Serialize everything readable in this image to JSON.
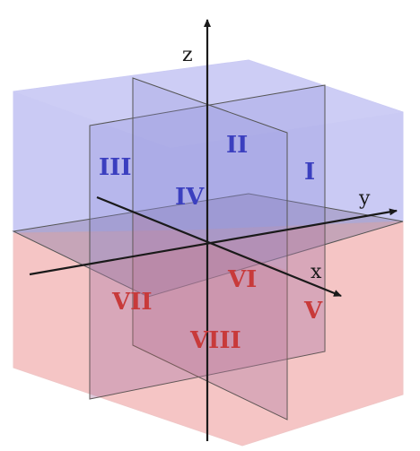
{
  "axes": {
    "x_label": "x",
    "y_label": "y",
    "z_label": "z"
  },
  "octants": {
    "I": "I",
    "II": "II",
    "III": "III",
    "IV": "IV",
    "V": "V",
    "VI": "VI",
    "VII": "VII",
    "VIII": "VIII"
  },
  "colors": {
    "upper_half": "#aaaaf0",
    "lower_half": "#f2aaaa",
    "upper_numerals": "#3b3fbf",
    "lower_numerals": "#c83a3a",
    "axes": "#1a1a1a"
  }
}
